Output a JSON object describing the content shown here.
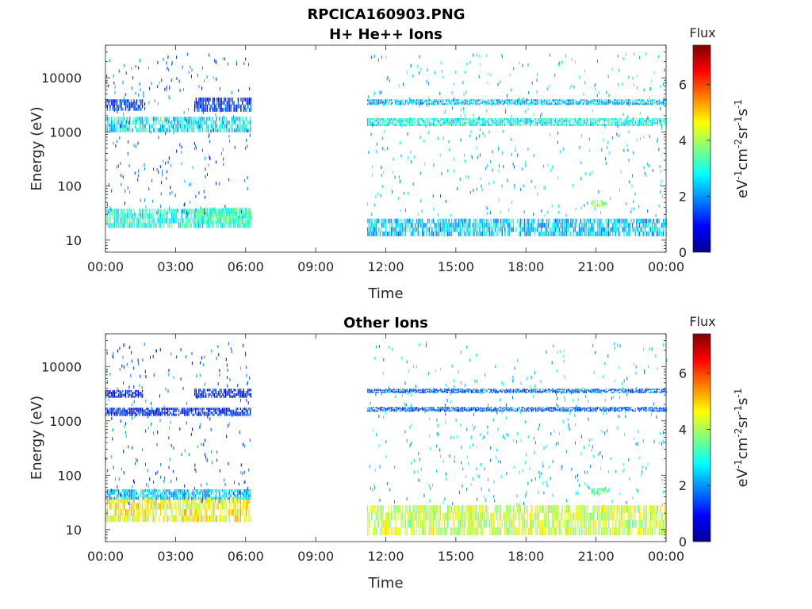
{
  "figure": {
    "title_line1": "RPCICA160903.PNG"
  },
  "chart_data": [
    {
      "type": "heatmap",
      "title": "H+ He++ Ions",
      "xlabel": "Time",
      "ylabel": "Energy (eV)",
      "x_ticks": [
        "00:00",
        "03:00",
        "06:00",
        "09:00",
        "12:00",
        "15:00",
        "18:00",
        "21:00",
        "00:00"
      ],
      "xlim_hours": [
        0,
        24
      ],
      "y_scale": "log",
      "ylim": [
        6,
        40000
      ],
      "y_ticks": [
        "10",
        "100",
        "1000",
        "10000"
      ],
      "y_tick_values": [
        10,
        100,
        1000,
        10000
      ],
      "colorbar": {
        "title": "Flux",
        "label": "eV-1cm-2sr-1s-1",
        "ticks": [
          "0",
          "2",
          "4",
          "6"
        ],
        "tick_values": [
          0,
          2,
          4,
          6
        ],
        "range": [
          0,
          7.4
        ],
        "colormap": "jet"
      },
      "bands": [
        {
          "t_start": 0.0,
          "t_end": 6.2,
          "e_low": 17,
          "e_high": 38,
          "flux": 3.0
        },
        {
          "t_start": 3.8,
          "t_end": 6.2,
          "e_low": 20,
          "e_high": 40,
          "flux": 3.3
        },
        {
          "t_start": 0.0,
          "t_end": 6.2,
          "e_low": 1000,
          "e_high": 1900,
          "flux": 2.7
        },
        {
          "t_start": 0.0,
          "t_end": 1.6,
          "e_low": 2500,
          "e_high": 4000,
          "flux": 1.3
        },
        {
          "t_start": 3.8,
          "t_end": 6.2,
          "e_low": 2400,
          "e_high": 4300,
          "flux": 1.2
        },
        {
          "t_start": 11.2,
          "t_end": 24.0,
          "e_low": 1300,
          "e_high": 1800,
          "flux": 2.9
        },
        {
          "t_start": 11.2,
          "t_end": 24.0,
          "e_low": 3200,
          "e_high": 4000,
          "flux": 2.3
        },
        {
          "t_start": 11.2,
          "t_end": 24.0,
          "e_low": 12,
          "e_high": 25,
          "flux": 2.4
        },
        {
          "t_start": 20.8,
          "t_end": 21.4,
          "e_low": 42,
          "e_high": 55,
          "flux": 3.8
        }
      ]
    },
    {
      "type": "heatmap",
      "title": "Other Ions",
      "xlabel": "Time",
      "ylabel": "Energy (eV)",
      "x_ticks": [
        "00:00",
        "03:00",
        "06:00",
        "09:00",
        "12:00",
        "15:00",
        "18:00",
        "21:00",
        "00:00"
      ],
      "xlim_hours": [
        0,
        24
      ],
      "y_scale": "log",
      "ylim": [
        6,
        40000
      ],
      "y_ticks": [
        "10",
        "100",
        "1000",
        "10000"
      ],
      "y_tick_values": [
        10,
        100,
        1000,
        10000
      ],
      "colorbar": {
        "title": "Flux",
        "label": "eV-1cm-2sr-1s-1",
        "ticks": [
          "0",
          "2",
          "4",
          "6"
        ],
        "tick_values": [
          0,
          2,
          4,
          6
        ],
        "range": [
          0,
          7.4
        ],
        "colormap": "jet"
      },
      "bands": [
        {
          "t_start": 0.0,
          "t_end": 6.2,
          "e_low": 14,
          "e_high": 40,
          "flux": 4.6
        },
        {
          "t_start": 0.0,
          "t_end": 6.2,
          "e_low": 36,
          "e_high": 55,
          "flux": 2.4
        },
        {
          "t_start": 0.0,
          "t_end": 6.2,
          "e_low": 1250,
          "e_high": 1750,
          "flux": 1.2
        },
        {
          "t_start": 0.0,
          "t_end": 1.6,
          "e_low": 2700,
          "e_high": 3700,
          "flux": 1.0
        },
        {
          "t_start": 3.8,
          "t_end": 6.2,
          "e_low": 2700,
          "e_high": 3900,
          "flux": 1.0
        },
        {
          "t_start": 11.2,
          "t_end": 24.0,
          "e_low": 8,
          "e_high": 28,
          "flux": 4.2
        },
        {
          "t_start": 11.2,
          "t_end": 24.0,
          "e_low": 1500,
          "e_high": 1800,
          "flux": 1.6
        },
        {
          "t_start": 11.2,
          "t_end": 24.0,
          "e_low": 3300,
          "e_high": 3900,
          "flux": 1.6
        },
        {
          "t_start": 20.8,
          "t_end": 21.4,
          "e_low": 45,
          "e_high": 58,
          "flux": 3.6
        }
      ]
    }
  ]
}
